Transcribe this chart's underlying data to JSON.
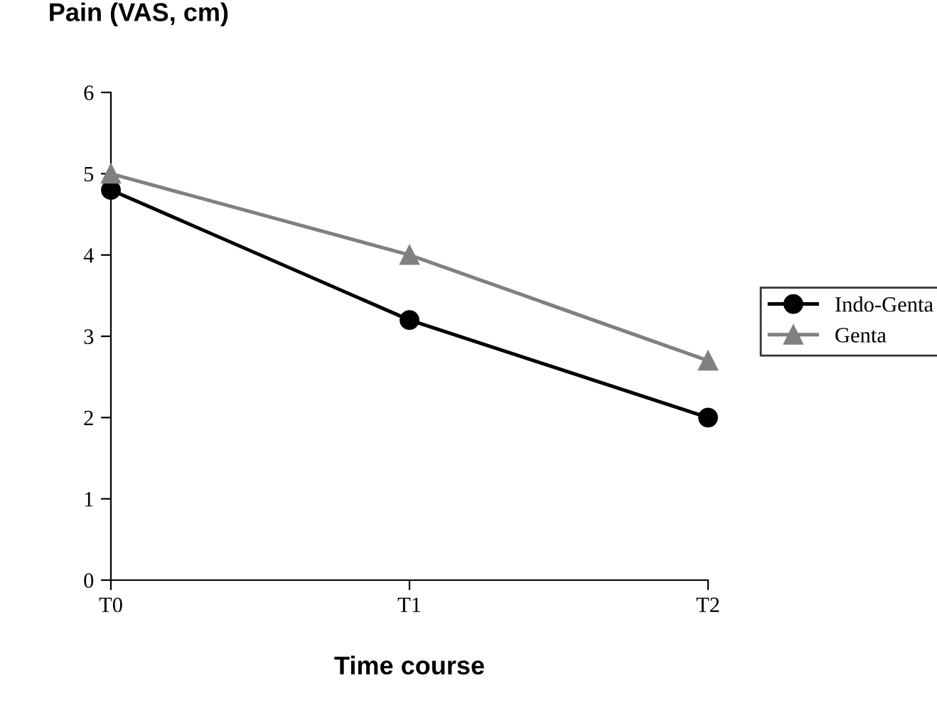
{
  "chart_data": {
    "type": "line",
    "ylabel": "Pain (VAS, cm)",
    "xlabel": "Time course",
    "categories": [
      "T0",
      "T1",
      "T2"
    ],
    "series": [
      {
        "name": "Indo-Genta",
        "color": "#000000",
        "marker": "circle",
        "values": [
          4.8,
          3.2,
          2.0
        ]
      },
      {
        "name": "Genta",
        "color": "#808080",
        "marker": "triangle",
        "values": [
          5.0,
          4.0,
          2.7
        ]
      }
    ],
    "ylim": [
      0,
      6
    ],
    "yticks": [
      0,
      1,
      2,
      3,
      4,
      5,
      6
    ],
    "grid": false,
    "legend": "right",
    "line_style": "solid"
  }
}
